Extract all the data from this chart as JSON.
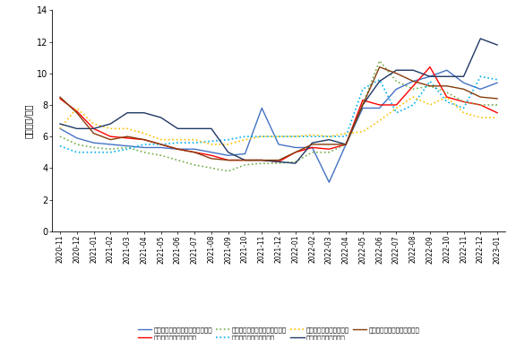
{
  "title": "",
  "ylabel": "单位：元/公斤",
  "ylim": [
    0,
    14
  ],
  "yticks": [
    0,
    2,
    4,
    6,
    8,
    10,
    12,
    14
  ],
  "series": [
    {
      "name": "北京新发地农副产品批发市场中心",
      "color": "#4472C4",
      "linestyle": "-",
      "linewidth": 1.0,
      "data": [
        6.5,
        5.9,
        5.6,
        5.5,
        5.4,
        5.3,
        5.3,
        5.2,
        5.2,
        5.0,
        4.8,
        4.9,
        7.8,
        5.5,
        5.3,
        5.3,
        3.1,
        5.5,
        7.8,
        7.8,
        9.0,
        9.5,
        9.8,
        10.2,
        9.4,
        9.0,
        9.4
      ]
    },
    {
      "name": "郑州万邦农产品批发市场",
      "color": "#FF0000",
      "linestyle": "-",
      "linewidth": 1.0,
      "data": [
        8.4,
        7.6,
        6.5,
        6.0,
        5.9,
        5.8,
        5.5,
        5.2,
        5.0,
        4.8,
        4.5,
        4.5,
        4.5,
        4.4,
        5.0,
        5.3,
        5.2,
        5.5,
        8.3,
        8.0,
        8.0,
        9.2,
        10.4,
        8.5,
        8.2,
        8.0,
        7.5
      ]
    },
    {
      "name": "湖南（长沙）红星水果批发市场",
      "color": "#70AD47",
      "linestyle": ":",
      "linewidth": 1.2,
      "data": [
        6.0,
        5.5,
        5.3,
        5.2,
        5.3,
        5.0,
        4.8,
        4.5,
        4.2,
        4.0,
        3.8,
        4.2,
        4.3,
        4.3,
        4.4,
        5.0,
        5.0,
        5.5,
        8.0,
        10.8,
        9.5,
        9.0,
        9.2,
        8.8,
        8.2,
        8.0,
        8.0
      ]
    },
    {
      "name": "成都荷润农产品批发市场",
      "color": "#00B0F0",
      "linestyle": ":",
      "linewidth": 1.2,
      "data": [
        5.4,
        5.0,
        5.0,
        5.0,
        5.2,
        5.5,
        5.5,
        5.6,
        5.6,
        5.7,
        5.8,
        6.0,
        6.0,
        6.0,
        6.0,
        6.0,
        6.0,
        6.0,
        9.0,
        9.6,
        7.5,
        8.0,
        9.5,
        8.2,
        7.8,
        9.8,
        9.6
      ]
    },
    {
      "name": "沈阳八素子水果批发市场",
      "color": "#FFC000",
      "linestyle": ":",
      "linewidth": 1.2,
      "data": [
        6.5,
        7.8,
        6.8,
        6.5,
        6.5,
        6.2,
        5.8,
        5.8,
        5.8,
        5.5,
        5.5,
        5.8,
        6.0,
        6.0,
        6.0,
        6.1,
        6.0,
        6.2,
        6.3,
        7.0,
        7.8,
        8.5,
        8.0,
        8.5,
        7.5,
        7.2,
        7.2
      ]
    },
    {
      "name": "浙江嘉兴水果批发市场",
      "color": "#1F3864",
      "linestyle": "-",
      "linewidth": 1.0,
      "data": [
        6.8,
        6.5,
        6.5,
        6.8,
        7.5,
        7.5,
        7.2,
        6.5,
        6.5,
        6.5,
        5.0,
        4.5,
        4.5,
        4.4,
        4.3,
        5.6,
        5.8,
        5.5,
        8.0,
        9.5,
        10.2,
        10.2,
        9.8,
        9.8,
        9.8,
        12.2,
        11.8
      ]
    },
    {
      "name": "汕头市农副产品批发中心市场",
      "color": "#843C0C",
      "linestyle": "-",
      "linewidth": 1.0,
      "data": [
        8.5,
        7.5,
        6.2,
        5.8,
        6.0,
        5.8,
        5.5,
        5.2,
        5.0,
        4.6,
        4.5,
        4.5,
        4.5,
        4.5,
        5.0,
        5.5,
        5.5,
        5.5,
        8.0,
        10.4,
        10.0,
        9.5,
        9.2,
        9.2,
        9.0,
        8.5,
        8.4
      ]
    }
  ],
  "xtick_labels": [
    "2020-11",
    "2020-12",
    "2021-01",
    "2021-02",
    "2021-03",
    "2021-04",
    "2021-05",
    "2021-06",
    "2021-07",
    "2021-08",
    "2021-09",
    "2021-10",
    "2021-11",
    "2021-12",
    "2022-01",
    "2022-02",
    "2022-03",
    "2022-04",
    "2022-05",
    "2022-06",
    "2022-07",
    "2022-08",
    "2022-09",
    "2022-10",
    "2022-11",
    "2022-12",
    "2023-01"
  ],
  "legend_cols": 4,
  "legend_fontsize": 5.2,
  "axis_fontsize": 7,
  "tick_fontsize": 5.5,
  "background_color": "#FFFFFF"
}
